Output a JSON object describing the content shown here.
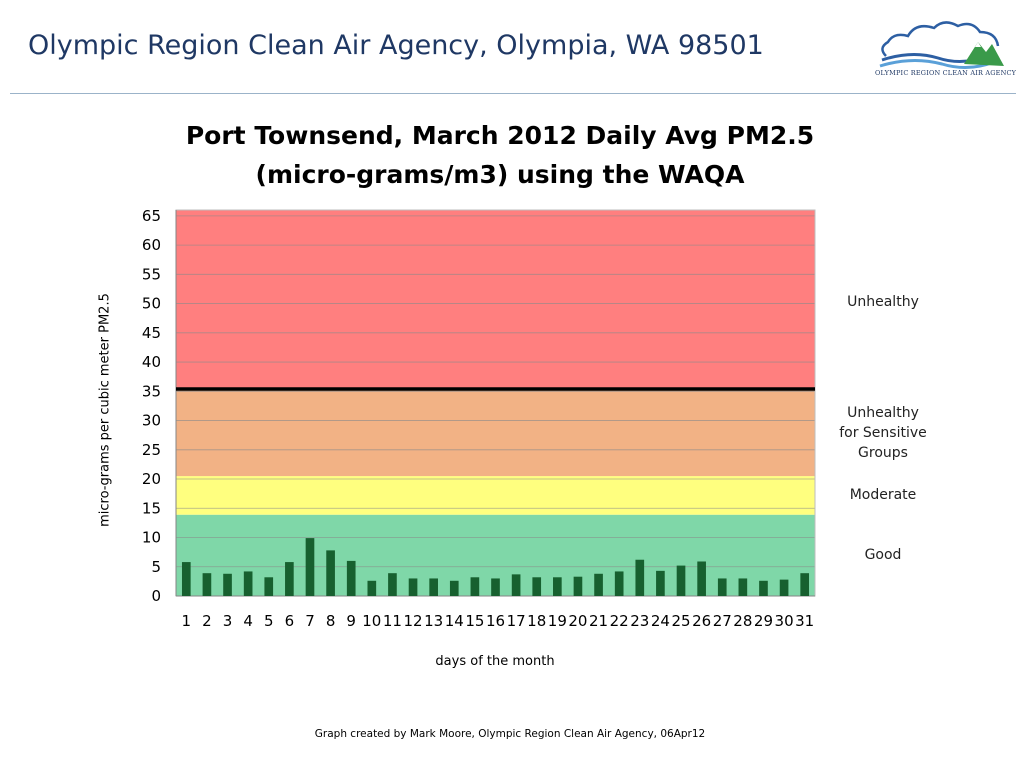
{
  "header": {
    "title": "Olympic Region Clean Air Agency, Olympia, WA 98501",
    "logo_text": "OLYMPIC REGION CLEAN AIR AGENCY"
  },
  "footer": {
    "credit": "Graph created by Mark Moore, Olympic Region Clean Air Agency, 06Apr12"
  },
  "chart_data": {
    "type": "bar",
    "title": "Port Townsend, March 2012 Daily Avg PM2.5 (micro-grams/m3) using the WAQA",
    "title_lines": [
      "Port Townsend, March 2012 Daily Avg PM2.5",
      "(micro-grams/m3) using the WAQA"
    ],
    "xlabel": "days of the month",
    "ylabel": "micro-grams per cubic meter PM2.5",
    "ylim": [
      0,
      66
    ],
    "yticks": [
      0,
      5,
      10,
      15,
      20,
      25,
      30,
      35,
      40,
      45,
      50,
      55,
      60,
      65
    ],
    "grid": true,
    "categories": [
      "1",
      "2",
      "3",
      "4",
      "5",
      "6",
      "7",
      "8",
      "9",
      "10",
      "11",
      "12",
      "13",
      "14",
      "15",
      "16",
      "17",
      "18",
      "19",
      "20",
      "21",
      "22",
      "23",
      "24",
      "25",
      "26",
      "27",
      "28",
      "29",
      "30",
      "31"
    ],
    "values": [
      5.8,
      3.9,
      3.8,
      4.2,
      3.2,
      5.8,
      9.9,
      7.8,
      6.0,
      2.6,
      3.9,
      3.0,
      3.0,
      2.6,
      3.2,
      3.0,
      3.7,
      3.2,
      3.2,
      3.3,
      3.8,
      4.2,
      6.2,
      4.3,
      5.2,
      5.9,
      3.0,
      3.0,
      2.6,
      2.8,
      3.9
    ],
    "bar_color": "#17602f",
    "threshold_line": 35.4,
    "bands": [
      {
        "label": "Good",
        "from": 0,
        "to": 13.9,
        "color": "#7fd7a8"
      },
      {
        "label": "Moderate",
        "from": 13.9,
        "to": 20.5,
        "color": "#ffff7f"
      },
      {
        "label": "Unhealthy for Sensitive Groups",
        "label_lines": [
          "Unhealthy",
          "for Sensitive",
          "Groups"
        ],
        "from": 20.5,
        "to": 35.4,
        "color": "#f2b285"
      },
      {
        "label": "Unhealthy",
        "from": 35.4,
        "to": 66,
        "color": "#ff7f7f"
      }
    ]
  }
}
